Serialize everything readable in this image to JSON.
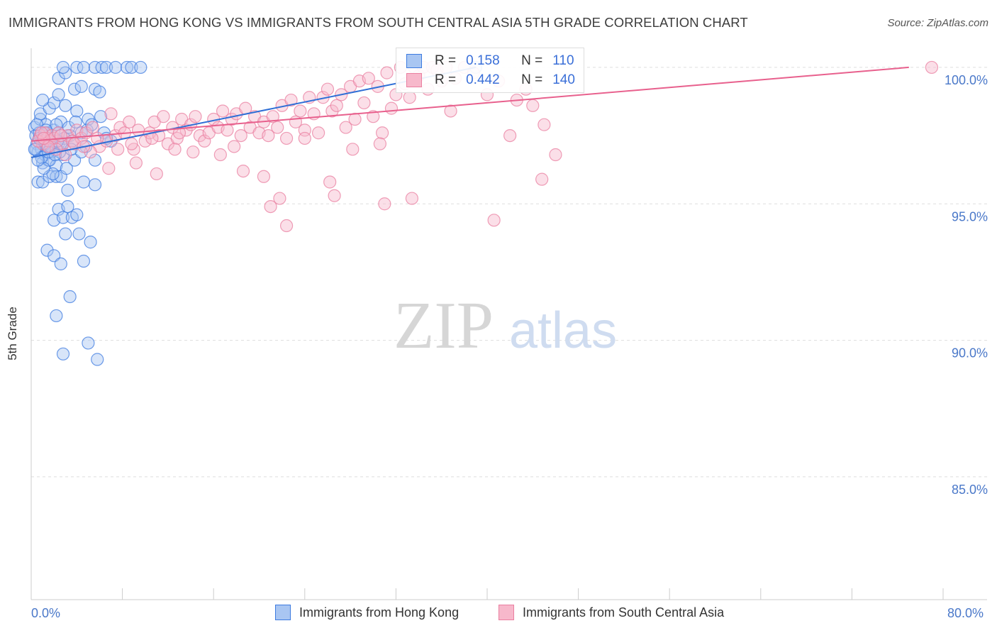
{
  "header": {
    "title": "IMMIGRANTS FROM HONG KONG VS IMMIGRANTS FROM SOUTH CENTRAL ASIA 5TH GRADE CORRELATION CHART",
    "source": "Source: ZipAtlas.com"
  },
  "watermark": {
    "zip": "ZIP",
    "atlas": "atlas"
  },
  "legend": {
    "r_label": "R =",
    "n_label": "N =",
    "rows": [
      {
        "r": "0.158",
        "n": "110"
      },
      {
        "r": "0.442",
        "n": "140"
      }
    ]
  },
  "colors": {
    "blue_fill": "#a9c6f2",
    "blue_stroke": "#3d7be0",
    "blue_line": "#2f6fd6",
    "pink_fill": "#f7b8cb",
    "pink_stroke": "#ea7fa0",
    "pink_line": "#e8608d",
    "tick_text": "#4a78c9"
  },
  "chart_data": {
    "type": "scatter",
    "title": "IMMIGRANTS FROM HONG KONG VS IMMIGRANTS FROM SOUTH CENTRAL ASIA 5TH GRADE CORRELATION CHART",
    "xlabel": "",
    "ylabel": "5th Grade",
    "xlim": [
      0,
      80
    ],
    "ylim": [
      80.5,
      100.7
    ],
    "x_tick_labels": [
      "0.0%",
      "80.0%"
    ],
    "y_ticks": [
      {
        "value": 100,
        "label": "100.0%"
      },
      {
        "value": 95,
        "label": "95.0%"
      },
      {
        "value": 90,
        "label": "90.0%"
      },
      {
        "value": 85,
        "label": "85.0%"
      }
    ],
    "series": [
      {
        "name": "Immigrants from Hong Kong",
        "r": 0.158,
        "n": 110,
        "trend": {
          "x": [
            0,
            39
          ],
          "y": [
            96.7,
            100.0
          ]
        },
        "points": [
          [
            0.3,
            97.8
          ],
          [
            0.4,
            97.5
          ],
          [
            0.5,
            97.2
          ],
          [
            0.6,
            96.9
          ],
          [
            0.7,
            97.6
          ],
          [
            0.8,
            98.1
          ],
          [
            0.9,
            97.0
          ],
          [
            1.0,
            96.5
          ],
          [
            1.1,
            97.3
          ],
          [
            1.2,
            96.8
          ],
          [
            1.3,
            97.9
          ],
          [
            1.4,
            97.1
          ],
          [
            1.5,
            96.6
          ],
          [
            1.6,
            97.4
          ],
          [
            1.8,
            96.9
          ],
          [
            2.0,
            97.7
          ],
          [
            2.2,
            96.4
          ],
          [
            2.4,
            97.2
          ],
          [
            2.6,
            98.0
          ],
          [
            2.8,
            96.8
          ],
          [
            0.6,
            95.8
          ],
          [
            1.0,
            95.8
          ],
          [
            1.6,
            96.0
          ],
          [
            2.2,
            96.0
          ],
          [
            2.6,
            96.0
          ],
          [
            3.2,
            95.5
          ],
          [
            4.6,
            95.8
          ],
          [
            5.6,
            95.7
          ],
          [
            0.8,
            98.3
          ],
          [
            1.6,
            98.5
          ],
          [
            2.0,
            98.7
          ],
          [
            3.0,
            98.6
          ],
          [
            4.0,
            98.4
          ],
          [
            5.0,
            98.1
          ],
          [
            1.0,
            98.8
          ],
          [
            2.4,
            99.0
          ],
          [
            3.8,
            99.2
          ],
          [
            5.6,
            99.2
          ],
          [
            6.0,
            99.1
          ],
          [
            4.4,
            99.3
          ],
          [
            2.4,
            99.6
          ],
          [
            3.0,
            99.8
          ],
          [
            2.8,
            100.0
          ],
          [
            4.0,
            100.0
          ],
          [
            4.6,
            100.0
          ],
          [
            5.6,
            100.0
          ],
          [
            6.2,
            100.0
          ],
          [
            6.6,
            100.0
          ],
          [
            7.4,
            100.0
          ],
          [
            8.4,
            100.0
          ],
          [
            8.8,
            100.0
          ],
          [
            9.6,
            100.0
          ],
          [
            2.4,
            94.8
          ],
          [
            3.2,
            94.9
          ],
          [
            2.0,
            94.4
          ],
          [
            2.8,
            94.5
          ],
          [
            3.6,
            94.5
          ],
          [
            4.0,
            94.6
          ],
          [
            3.0,
            93.9
          ],
          [
            4.2,
            93.9
          ],
          [
            5.2,
            93.6
          ],
          [
            1.4,
            93.3
          ],
          [
            2.0,
            93.1
          ],
          [
            2.6,
            92.8
          ],
          [
            4.6,
            92.9
          ],
          [
            3.4,
            91.6
          ],
          [
            2.2,
            90.9
          ],
          [
            5.0,
            89.9
          ],
          [
            2.8,
            89.5
          ],
          [
            5.8,
            89.3
          ],
          [
            1.2,
            97.2
          ],
          [
            2.4,
            97.6
          ],
          [
            3.4,
            97.5
          ],
          [
            4.8,
            97.1
          ],
          [
            6.4,
            97.6
          ],
          [
            3.8,
            96.6
          ],
          [
            5.6,
            96.6
          ],
          [
            4.4,
            96.9
          ],
          [
            7.0,
            97.3
          ],
          [
            1.0,
            97.4
          ],
          [
            1.6,
            96.6
          ],
          [
            0.4,
            97.0
          ],
          [
            2.2,
            97.9
          ],
          [
            3.6,
            97.3
          ],
          [
            4.4,
            97.6
          ],
          [
            0.9,
            96.7
          ],
          [
            1.7,
            97.1
          ],
          [
            2.9,
            97.4
          ],
          [
            3.1,
            96.3
          ],
          [
            1.9,
            96.1
          ],
          [
            0.5,
            97.9
          ],
          [
            1.4,
            97.6
          ],
          [
            2.5,
            96.9
          ],
          [
            3.3,
            97.8
          ],
          [
            4.9,
            97.7
          ],
          [
            6.6,
            97.4
          ],
          [
            3.9,
            98.0
          ],
          [
            2.7,
            97.2
          ],
          [
            1.1,
            96.3
          ],
          [
            0.6,
            96.6
          ],
          [
            0.3,
            97.0
          ],
          [
            1.5,
            96.9
          ],
          [
            2.3,
            97.3
          ],
          [
            3.5,
            97.0
          ],
          [
            6.1,
            98.2
          ],
          [
            5.3,
            97.9
          ],
          [
            2.1,
            96.8
          ],
          [
            0.7,
            97.4
          ],
          [
            1.3,
            97.7
          ],
          [
            39.0,
            100.0
          ]
        ]
      },
      {
        "name": "Immigrants from South Central Asia",
        "r": 0.442,
        "n": 140,
        "trend": {
          "x": [
            0,
            77
          ],
          "y": [
            97.3,
            100.0
          ]
        },
        "points": [
          [
            0.8,
            97.5
          ],
          [
            1.0,
            97.2
          ],
          [
            1.2,
            97.6
          ],
          [
            1.4,
            97.4
          ],
          [
            1.6,
            97.3
          ],
          [
            1.8,
            97.5
          ],
          [
            2.0,
            97.4
          ],
          [
            2.4,
            97.6
          ],
          [
            2.8,
            97.2
          ],
          [
            3.2,
            97.5
          ],
          [
            3.6,
            97.3
          ],
          [
            4.0,
            97.7
          ],
          [
            4.4,
            97.4
          ],
          [
            4.8,
            97.6
          ],
          [
            5.4,
            97.8
          ],
          [
            6.0,
            97.1
          ],
          [
            6.6,
            97.3
          ],
          [
            7.0,
            98.3
          ],
          [
            7.4,
            97.5
          ],
          [
            7.8,
            97.8
          ],
          [
            8.2,
            97.6
          ],
          [
            8.6,
            98.0
          ],
          [
            9.0,
            97.0
          ],
          [
            9.4,
            97.7
          ],
          [
            10.0,
            97.3
          ],
          [
            10.4,
            97.6
          ],
          [
            10.8,
            98.0
          ],
          [
            11.2,
            97.5
          ],
          [
            11.6,
            98.2
          ],
          [
            12.0,
            97.2
          ],
          [
            12.4,
            97.8
          ],
          [
            12.8,
            97.4
          ],
          [
            13.2,
            98.1
          ],
          [
            13.6,
            97.7
          ],
          [
            14.0,
            97.9
          ],
          [
            14.4,
            98.2
          ],
          [
            14.8,
            97.5
          ],
          [
            15.2,
            97.3
          ],
          [
            15.6,
            97.6
          ],
          [
            16.0,
            98.1
          ],
          [
            16.4,
            97.8
          ],
          [
            16.8,
            98.4
          ],
          [
            17.2,
            97.7
          ],
          [
            17.6,
            98.1
          ],
          [
            18.0,
            98.3
          ],
          [
            18.4,
            97.5
          ],
          [
            18.8,
            98.5
          ],
          [
            19.2,
            97.8
          ],
          [
            19.6,
            98.2
          ],
          [
            20.0,
            97.6
          ],
          [
            20.4,
            98.0
          ],
          [
            20.8,
            97.5
          ],
          [
            21.2,
            98.2
          ],
          [
            21.6,
            97.8
          ],
          [
            22.0,
            98.6
          ],
          [
            22.4,
            97.4
          ],
          [
            22.8,
            98.8
          ],
          [
            23.2,
            98.0
          ],
          [
            23.6,
            98.4
          ],
          [
            24.0,
            97.7
          ],
          [
            24.4,
            98.9
          ],
          [
            24.8,
            98.3
          ],
          [
            25.2,
            97.6
          ],
          [
            25.6,
            98.9
          ],
          [
            26.0,
            99.2
          ],
          [
            26.4,
            98.4
          ],
          [
            26.8,
            98.6
          ],
          [
            27.2,
            99.0
          ],
          [
            27.6,
            97.8
          ],
          [
            28.0,
            99.3
          ],
          [
            28.4,
            98.1
          ],
          [
            28.8,
            99.5
          ],
          [
            29.2,
            98.7
          ],
          [
            29.6,
            99.6
          ],
          [
            30.0,
            98.2
          ],
          [
            30.4,
            99.3
          ],
          [
            30.8,
            97.6
          ],
          [
            31.2,
            99.8
          ],
          [
            31.6,
            98.5
          ],
          [
            32.0,
            99.0
          ],
          [
            32.4,
            100.0
          ],
          [
            32.8,
            99.4
          ],
          [
            33.2,
            98.9
          ],
          [
            33.6,
            100.0
          ],
          [
            34.0,
            99.7
          ],
          [
            34.4,
            100.0
          ],
          [
            34.8,
            99.2
          ],
          [
            35.2,
            100.0
          ],
          [
            35.6,
            99.9
          ],
          [
            36.0,
            99.5
          ],
          [
            36.4,
            100.0
          ],
          [
            36.8,
            98.4
          ],
          [
            37.2,
            99.6
          ],
          [
            38.0,
            100.0
          ],
          [
            38.8,
            99.8
          ],
          [
            40.0,
            99.0
          ],
          [
            41.0,
            99.5
          ],
          [
            42.0,
            97.5
          ],
          [
            42.6,
            98.8
          ],
          [
            43.4,
            99.2
          ],
          [
            44.0,
            98.6
          ],
          [
            45.0,
            97.9
          ],
          [
            46.0,
            96.8
          ],
          [
            44.8,
            95.9
          ],
          [
            18.6,
            96.2
          ],
          [
            20.4,
            96.0
          ],
          [
            21.8,
            95.2
          ],
          [
            21.0,
            94.9
          ],
          [
            22.4,
            94.2
          ],
          [
            26.2,
            95.8
          ],
          [
            26.6,
            95.3
          ],
          [
            31.0,
            95.0
          ],
          [
            33.4,
            95.2
          ],
          [
            40.6,
            94.4
          ],
          [
            11.0,
            96.1
          ],
          [
            16.6,
            96.8
          ],
          [
            28.2,
            97.0
          ],
          [
            30.6,
            97.2
          ],
          [
            17.8,
            97.1
          ],
          [
            24.0,
            97.4
          ],
          [
            14.2,
            96.9
          ],
          [
            9.2,
            96.5
          ],
          [
            6.8,
            96.3
          ],
          [
            12.6,
            97.0
          ],
          [
            3.0,
            96.8
          ],
          [
            5.2,
            96.9
          ],
          [
            7.6,
            97.0
          ],
          [
            2.2,
            97.0
          ],
          [
            1.5,
            97.1
          ],
          [
            0.6,
            97.3
          ],
          [
            0.9,
            97.6
          ],
          [
            1.1,
            97.4
          ],
          [
            2.6,
            97.5
          ],
          [
            3.8,
            97.2
          ],
          [
            4.6,
            97.1
          ],
          [
            5.8,
            97.4
          ],
          [
            8.8,
            97.2
          ],
          [
            10.6,
            97.4
          ],
          [
            13.0,
            97.6
          ],
          [
            79.0,
            100.0
          ]
        ]
      }
    ],
    "legend": [
      "Immigrants from Hong Kong",
      "Immigrants from South Central Asia"
    ]
  }
}
